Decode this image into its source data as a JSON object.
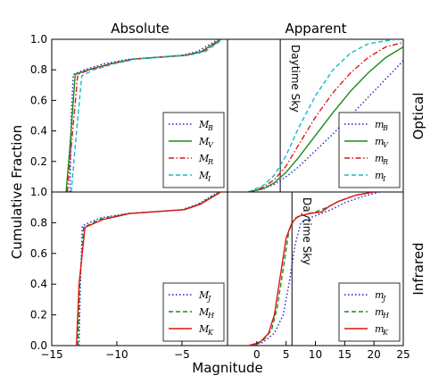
{
  "chart_data": {
    "type": "line",
    "xlabel": "Magnitude",
    "ylabel": "Cumulative Fraction",
    "column_titles": [
      "Absolute",
      "Apparent"
    ],
    "row_titles": [
      "Optical",
      "Infrared"
    ],
    "ylim": [
      0.0,
      1.0
    ],
    "y_ticks": [
      "0.0",
      "0.2",
      "0.4",
      "0.6",
      "0.8",
      "1.0"
    ],
    "grid": false,
    "panels": [
      {
        "id": "absolute-optical",
        "xlim": [
          -15,
          -1.5
        ],
        "legend_position": "lower-right",
        "series": [
          {
            "name": "M",
            "sub": "B",
            "color": "#1f1fcc",
            "dash": "dotted",
            "points": [
              [
                -13.6,
                0.0
              ],
              [
                -13.5,
                0.5
              ],
              [
                -13.35,
                0.77
              ],
              [
                -12.5,
                0.8
              ],
              [
                -11,
                0.84
              ],
              [
                -9,
                0.87
              ],
              [
                -5,
                0.895
              ],
              [
                -3.8,
                0.92
              ],
              [
                -2.6,
                0.98
              ],
              [
                -2.2,
                1.0
              ]
            ]
          },
          {
            "name": "M",
            "sub": "V",
            "color": "#1a8a1a",
            "dash": "solid",
            "points": [
              [
                -13.9,
                0.0
              ],
              [
                -13.6,
                0.3
              ],
              [
                -13.2,
                0.77
              ],
              [
                -12.2,
                0.8
              ],
              [
                -10.5,
                0.84
              ],
              [
                -8.8,
                0.87
              ],
              [
                -4.8,
                0.895
              ],
              [
                -3.5,
                0.92
              ],
              [
                -2.4,
                0.98
              ],
              [
                -2.0,
                1.0
              ]
            ]
          },
          {
            "name": "M",
            "sub": "R",
            "color": "#e01414",
            "dash": "dashdot",
            "points": [
              [
                -13.8,
                0.0
              ],
              [
                -13.5,
                0.3
              ],
              [
                -13.0,
                0.77
              ],
              [
                -12.1,
                0.8
              ],
              [
                -10.4,
                0.84
              ],
              [
                -8.7,
                0.87
              ],
              [
                -4.7,
                0.895
              ],
              [
                -3.4,
                0.92
              ],
              [
                -2.3,
                0.98
              ],
              [
                -1.9,
                1.0
              ]
            ]
          },
          {
            "name": "M",
            "sub": "I",
            "color": "#11bbcc",
            "dash": "dashed",
            "points": [
              [
                -13.5,
                0.0
              ],
              [
                -13.2,
                0.3
              ],
              [
                -12.7,
                0.76
              ],
              [
                -11.8,
                0.8
              ],
              [
                -10.2,
                0.84
              ],
              [
                -8.5,
                0.87
              ],
              [
                -4.5,
                0.895
              ],
              [
                -3.2,
                0.92
              ],
              [
                -2.2,
                0.98
              ],
              [
                -1.8,
                1.0
              ]
            ]
          }
        ]
      },
      {
        "id": "apparent-optical",
        "xlim": [
          -5,
          25
        ],
        "legend_position": "lower-right",
        "vline": {
          "x": 4,
          "label": "Daytime Sky"
        },
        "series": [
          {
            "name": "m",
            "sub": "B",
            "color": "#1f1fcc",
            "dash": "dotted",
            "points": [
              [
                -1.2,
                0.0
              ],
              [
                1,
                0.02
              ],
              [
                3,
                0.05
              ],
              [
                5,
                0.1
              ],
              [
                7,
                0.16
              ],
              [
                10,
                0.27
              ],
              [
                13,
                0.38
              ],
              [
                16,
                0.5
              ],
              [
                19,
                0.62
              ],
              [
                22,
                0.74
              ],
              [
                25,
                0.86
              ]
            ]
          },
          {
            "name": "m",
            "sub": "V",
            "color": "#1a8a1a",
            "dash": "solid",
            "points": [
              [
                -1.5,
                0.0
              ],
              [
                1,
                0.02
              ],
              [
                3,
                0.06
              ],
              [
                5,
                0.13
              ],
              [
                7,
                0.22
              ],
              [
                10,
                0.37
              ],
              [
                13,
                0.52
              ],
              [
                16,
                0.66
              ],
              [
                19,
                0.78
              ],
              [
                22,
                0.88
              ],
              [
                25,
                0.95
              ]
            ]
          },
          {
            "name": "m",
            "sub": "R",
            "color": "#e01414",
            "dash": "dashdot",
            "points": [
              [
                -1.5,
                0.0
              ],
              [
                1,
                0.03
              ],
              [
                3,
                0.08
              ],
              [
                5,
                0.17
              ],
              [
                7,
                0.3
              ],
              [
                10,
                0.49
              ],
              [
                13,
                0.65
              ],
              [
                16,
                0.78
              ],
              [
                19,
                0.88
              ],
              [
                22,
                0.95
              ],
              [
                25,
                0.98
              ]
            ]
          },
          {
            "name": "m",
            "sub": "I",
            "color": "#11bbcc",
            "dash": "dashed",
            "points": [
              [
                -1.5,
                0.0
              ],
              [
                1,
                0.04
              ],
              [
                3,
                0.11
              ],
              [
                5,
                0.24
              ],
              [
                7,
                0.41
              ],
              [
                10,
                0.63
              ],
              [
                13,
                0.8
              ],
              [
                16,
                0.91
              ],
              [
                19,
                0.97
              ],
              [
                22,
                0.99
              ],
              [
                24,
                1.0
              ]
            ]
          }
        ]
      },
      {
        "id": "absolute-infrared",
        "xlim": [
          -15,
          -1.5
        ],
        "legend_position": "lower-right",
        "series": [
          {
            "name": "M",
            "sub": "J",
            "color": "#1f1fcc",
            "dash": "dotted",
            "points": [
              [
                -12.9,
                0.0
              ],
              [
                -12.8,
                0.4
              ],
              [
                -12.65,
                0.78
              ],
              [
                -11.3,
                0.83
              ],
              [
                -9.2,
                0.86
              ],
              [
                -5,
                0.885
              ],
              [
                -3.8,
                0.92
              ],
              [
                -2.8,
                0.97
              ],
              [
                -2.2,
                1.0
              ]
            ]
          },
          {
            "name": "M",
            "sub": "H",
            "color": "#1a8a1a",
            "dash": "dashed",
            "points": [
              [
                -13.0,
                0.0
              ],
              [
                -12.85,
                0.4
              ],
              [
                -12.55,
                0.77
              ],
              [
                -11.2,
                0.825
              ],
              [
                -9.1,
                0.86
              ],
              [
                -4.9,
                0.885
              ],
              [
                -3.7,
                0.92
              ],
              [
                -2.7,
                0.97
              ],
              [
                -2.1,
                1.0
              ]
            ]
          },
          {
            "name": "M",
            "sub": "K",
            "color": "#e01414",
            "dash": "solid",
            "points": [
              [
                -13.1,
                0.0
              ],
              [
                -12.9,
                0.4
              ],
              [
                -12.45,
                0.77
              ],
              [
                -11.1,
                0.82
              ],
              [
                -9.0,
                0.86
              ],
              [
                -4.8,
                0.885
              ],
              [
                -3.6,
                0.92
              ],
              [
                -2.6,
                0.97
              ],
              [
                -2.0,
                1.0
              ]
            ]
          }
        ]
      },
      {
        "id": "apparent-infrared",
        "xlim": [
          -5,
          25
        ],
        "legend_position": "lower-right",
        "vline": {
          "x": 6,
          "label": "Daytime Sky"
        },
        "series": [
          {
            "name": "m",
            "sub": "J",
            "color": "#1f1fcc",
            "dash": "dotted",
            "points": [
              [
                -1,
                0.0
              ],
              [
                1,
                0.02
              ],
              [
                3,
                0.08
              ],
              [
                4.5,
                0.2
              ],
              [
                5.5,
                0.4
              ],
              [
                6.5,
                0.65
              ],
              [
                7.5,
                0.8
              ],
              [
                9,
                0.83
              ],
              [
                11,
                0.86
              ],
              [
                13,
                0.89
              ],
              [
                15,
                0.93
              ],
              [
                18,
                0.97
              ],
              [
                21,
                1.0
              ]
            ]
          },
          {
            "name": "m",
            "sub": "H",
            "color": "#1a8a1a",
            "dash": "dashed",
            "points": [
              [
                -1.2,
                0.0
              ],
              [
                1,
                0.03
              ],
              [
                2.5,
                0.1
              ],
              [
                3.5,
                0.25
              ],
              [
                4.5,
                0.5
              ],
              [
                5.5,
                0.75
              ],
              [
                6.5,
                0.83
              ],
              [
                8,
                0.85
              ],
              [
                10,
                0.87
              ],
              [
                12,
                0.9
              ],
              [
                14,
                0.94
              ],
              [
                17,
                0.98
              ],
              [
                20,
                1.0
              ]
            ]
          },
          {
            "name": "m",
            "sub": "K",
            "color": "#e01414",
            "dash": "solid",
            "points": [
              [
                -1.5,
                0.0
              ],
              [
                0.5,
                0.02
              ],
              [
                2,
                0.08
              ],
              [
                3,
                0.2
              ],
              [
                4,
                0.45
              ],
              [
                5,
                0.7
              ],
              [
                6,
                0.8
              ],
              [
                7,
                0.84
              ],
              [
                9,
                0.86
              ],
              [
                11,
                0.87
              ],
              [
                12.5,
                0.91
              ],
              [
                14,
                0.94
              ],
              [
                17,
                0.98
              ],
              [
                20,
                1.0
              ]
            ]
          }
        ]
      }
    ]
  }
}
